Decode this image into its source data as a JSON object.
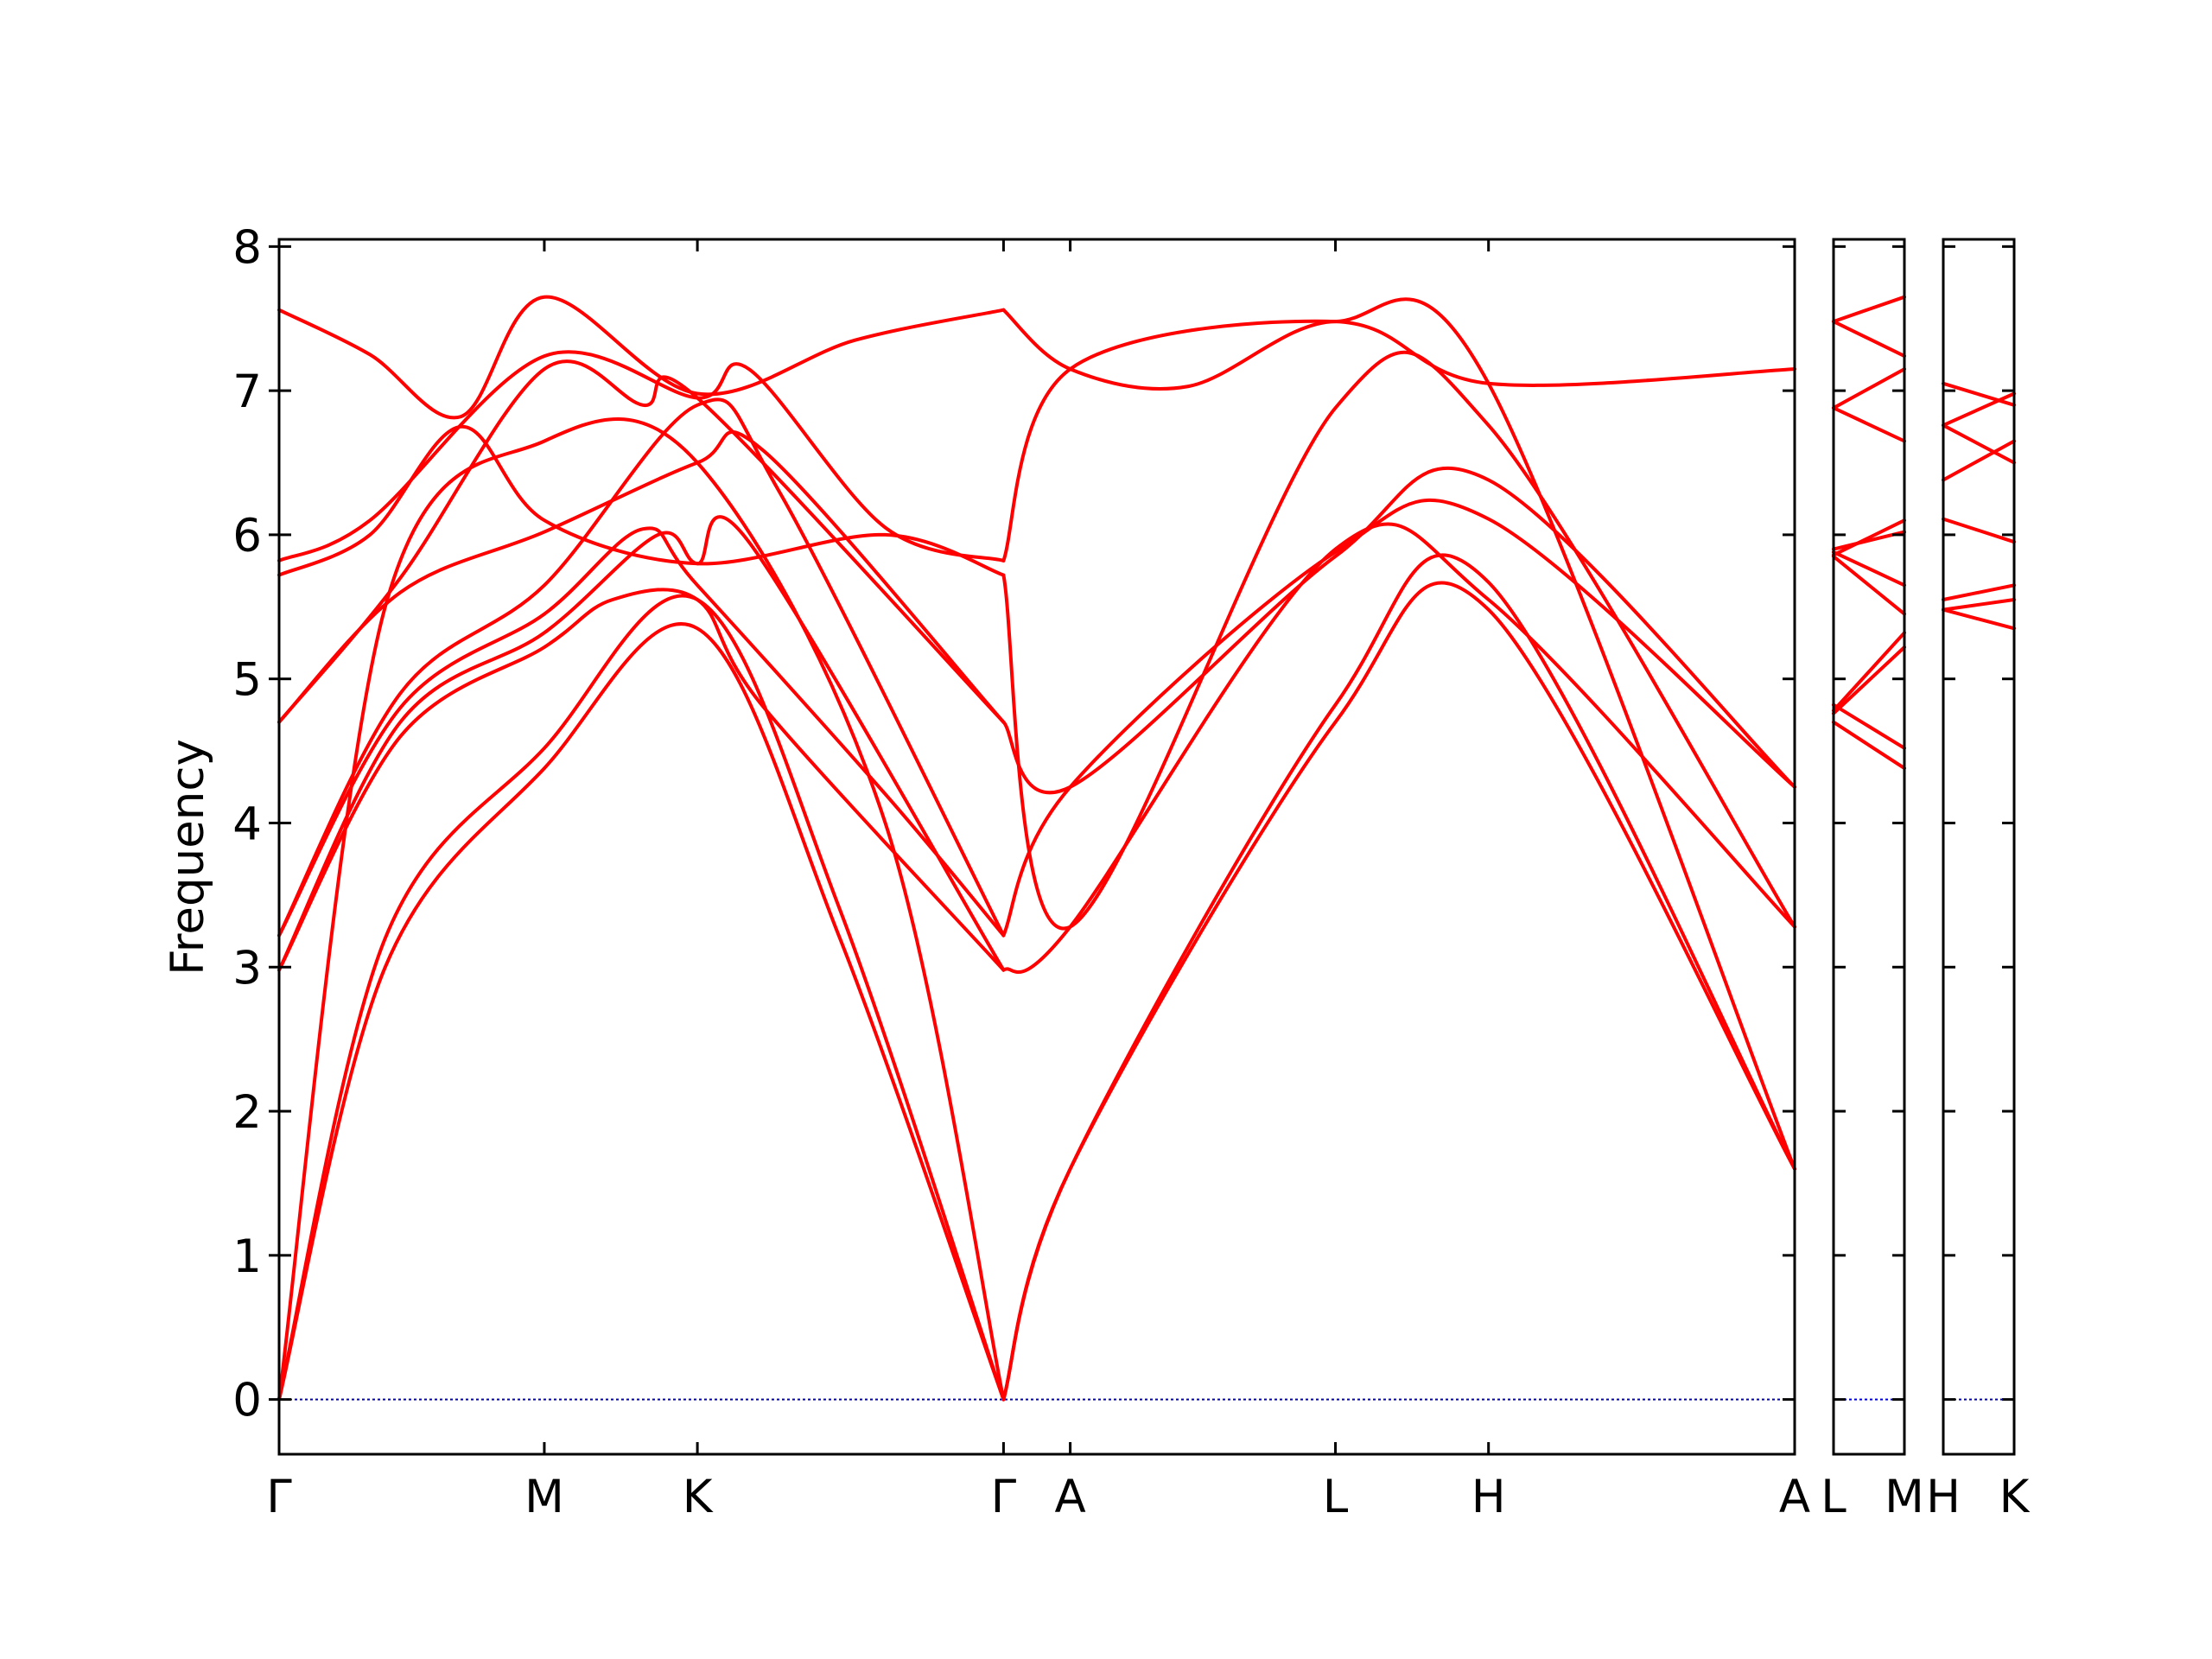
{
  "chart_data": {
    "type": "line",
    "title": "",
    "ylabel": "Frequency",
    "xlabel": "",
    "ylim": [
      -0.38,
      8.05
    ],
    "yticks": [
      0,
      1,
      2,
      3,
      4,
      5,
      6,
      7,
      8
    ],
    "line_color": "#ff0000",
    "zero_line_color": "#0000cc",
    "panels": [
      {
        "x_range": [
          0,
          5
        ],
        "ticks": [
          {
            "x": 0,
            "label": "Γ"
          },
          {
            "x": 0.875,
            "label": "M"
          },
          {
            "x": 1.38,
            "label": "K"
          },
          {
            "x": 2.39,
            "label": "Γ"
          },
          {
            "x": 2.61,
            "label": "A"
          },
          {
            "x": 3.485,
            "label": "L"
          },
          {
            "x": 3.99,
            "label": "H"
          },
          {
            "x": 5.0,
            "label": "A"
          }
        ],
        "series": [
          {
            "x": [
              0,
              0.35,
              0.875,
              1.38,
              1.85,
              2.39
            ],
            "y": [
              0.0,
              3.0,
              4.38,
              5.35,
              3.2,
              0.0
            ]
          },
          {
            "x": [
              0,
              0.35,
              0.875,
              1.38,
              1.85,
              2.39
            ],
            "y": [
              0.0,
              3.2,
              4.52,
              5.55,
              3.4,
              0.0
            ]
          },
          {
            "x": [
              0,
              0.35,
              0.875,
              1.38,
              2.0,
              2.39
            ],
            "y": [
              0.0,
              5.5,
              6.65,
              6.5,
              4.0,
              0.0
            ]
          },
          {
            "x": [
              0,
              0.4,
              0.875,
              1.1,
              1.38,
              1.6,
              2.39
            ],
            "y": [
              2.98,
              4.6,
              5.22,
              5.55,
              5.55,
              4.8,
              2.98
            ]
          },
          {
            "x": [
              0,
              0.4,
              0.875,
              1.25,
              1.38,
              1.55,
              2.39
            ],
            "y": [
              2.98,
              4.7,
              5.32,
              6.0,
              5.8,
              5.95,
              2.98
            ]
          },
          {
            "x": [
              0,
              0.4,
              0.875,
              1.2,
              1.38,
              2.0,
              2.39
            ],
            "y": [
              3.22,
              4.8,
              5.45,
              6.04,
              5.65,
              4.2,
              3.22
            ]
          },
          {
            "x": [
              0,
              0.4,
              0.875,
              1.38,
              1.65,
              2.39
            ],
            "y": [
              3.22,
              4.9,
              5.65,
              6.9,
              6.3,
              3.22
            ]
          },
          {
            "x": [
              0,
              0.4,
              0.875,
              1.38,
              1.6,
              2.39
            ],
            "y": [
              4.7,
              5.6,
              6.02,
              6.5,
              6.58,
              4.7
            ]
          },
          {
            "x": [
              0,
              0.4,
              0.875,
              1.2,
              1.38,
              2.39
            ],
            "y": [
              4.7,
              5.7,
              7.15,
              6.9,
              6.95,
              4.7
            ]
          },
          {
            "x": [
              0,
              0.3,
              0.6,
              0.875,
              1.38,
              2.0,
              2.39
            ],
            "y": [
              5.72,
              6.0,
              6.75,
              6.1,
              5.8,
              6.0,
              5.72
            ]
          },
          {
            "x": [
              0,
              0.3,
              0.875,
              1.38,
              1.55,
              2.0,
              2.39
            ],
            "y": [
              5.82,
              6.1,
              7.24,
              6.95,
              7.15,
              6.05,
              5.82
            ]
          },
          {
            "x": [
              0,
              0.3,
              0.6,
              0.875,
              1.38,
              1.9,
              2.39
            ],
            "y": [
              7.56,
              7.25,
              6.82,
              7.65,
              6.98,
              7.35,
              7.56
            ]
          },
          {
            "x": [
              2.39,
              2.61,
              3.485,
              3.99,
              5.0
            ],
            "y": [
              0.0,
              1.6,
              4.7,
              5.48,
              1.6
            ]
          },
          {
            "x": [
              2.39,
              2.61,
              3.485,
              3.99,
              5.0
            ],
            "y": [
              0.0,
              1.6,
              4.82,
              5.67,
              1.6
            ]
          },
          {
            "x": [
              2.39,
              2.61,
              3.485,
              3.99,
              5.0
            ],
            "y": [
              2.98,
              3.28,
              5.9,
              5.55,
              3.28
            ]
          },
          {
            "x": [
              2.39,
              2.61,
              3.485,
              3.99,
              5.0
            ],
            "y": [
              3.22,
              4.25,
              5.88,
              6.11,
              4.25
            ]
          },
          {
            "x": [
              2.39,
              2.61,
              3.485,
              3.99,
              5.0
            ],
            "y": [
              4.7,
              4.25,
              5.85,
              6.38,
              4.25
            ]
          },
          {
            "x": [
              2.39,
              2.61,
              3.485,
              3.99,
              5.0
            ],
            "y": [
              5.72,
              3.28,
              6.88,
              6.76,
              3.28
            ]
          },
          {
            "x": [
              2.39,
              2.61,
              3.485,
              3.99,
              5.0
            ],
            "y": [
              5.82,
              7.15,
              7.48,
              7.05,
              7.15
            ]
          },
          {
            "x": [
              2.39,
              2.61,
              3.0,
              3.485,
              3.99,
              5.0
            ],
            "y": [
              7.56,
              7.15,
              7.03,
              7.48,
              7.05,
              1.6
            ]
          }
        ]
      },
      {
        "x_range": [
          0,
          1
        ],
        "ticks": [
          {
            "x": 0,
            "label": "L"
          },
          {
            "x": 1,
            "label": "M"
          }
        ],
        "series": [
          {
            "x": [
              0,
              1
            ],
            "y": [
              4.7,
              4.38
            ]
          },
          {
            "x": [
              0,
              1
            ],
            "y": [
              4.82,
              4.52
            ]
          },
          {
            "x": [
              0,
              1
            ],
            "y": [
              4.76,
              5.22
            ]
          },
          {
            "x": [
              0,
              1
            ],
            "y": [
              4.78,
              5.32
            ]
          },
          {
            "x": [
              0,
              1
            ],
            "y": [
              5.85,
              5.45
            ]
          },
          {
            "x": [
              0,
              1
            ],
            "y": [
              5.88,
              5.65
            ]
          },
          {
            "x": [
              0,
              1
            ],
            "y": [
              5.9,
              6.02
            ]
          },
          {
            "x": [
              0,
              1
            ],
            "y": [
              5.86,
              6.1
            ]
          },
          {
            "x": [
              0,
              1
            ],
            "y": [
              6.88,
              6.65
            ]
          },
          {
            "x": [
              0,
              1
            ],
            "y": [
              6.88,
              7.15
            ]
          },
          {
            "x": [
              0,
              1
            ],
            "y": [
              7.48,
              7.24
            ]
          },
          {
            "x": [
              0,
              1
            ],
            "y": [
              7.48,
              7.65
            ]
          }
        ]
      },
      {
        "x_range": [
          0,
          1
        ],
        "ticks": [
          {
            "x": 0,
            "label": "H"
          },
          {
            "x": 1,
            "label": "K"
          }
        ],
        "series": [
          {
            "x": [
              0,
              1
            ],
            "y": [
              5.48,
              5.35
            ]
          },
          {
            "x": [
              0,
              1
            ],
            "y": [
              5.48,
              5.55
            ]
          },
          {
            "x": [
              0,
              1
            ],
            "y": [
              5.55,
              5.65
            ]
          },
          {
            "x": [
              0,
              1
            ],
            "y": [
              6.11,
              5.95
            ]
          },
          {
            "x": [
              0,
              1
            ],
            "y": [
              6.38,
              6.65
            ]
          },
          {
            "x": [
              0,
              1
            ],
            "y": [
              6.76,
              6.5
            ]
          },
          {
            "x": [
              0,
              1
            ],
            "y": [
              6.76,
              6.98
            ]
          },
          {
            "x": [
              0,
              1
            ],
            "y": [
              7.05,
              6.9
            ]
          }
        ]
      }
    ]
  }
}
